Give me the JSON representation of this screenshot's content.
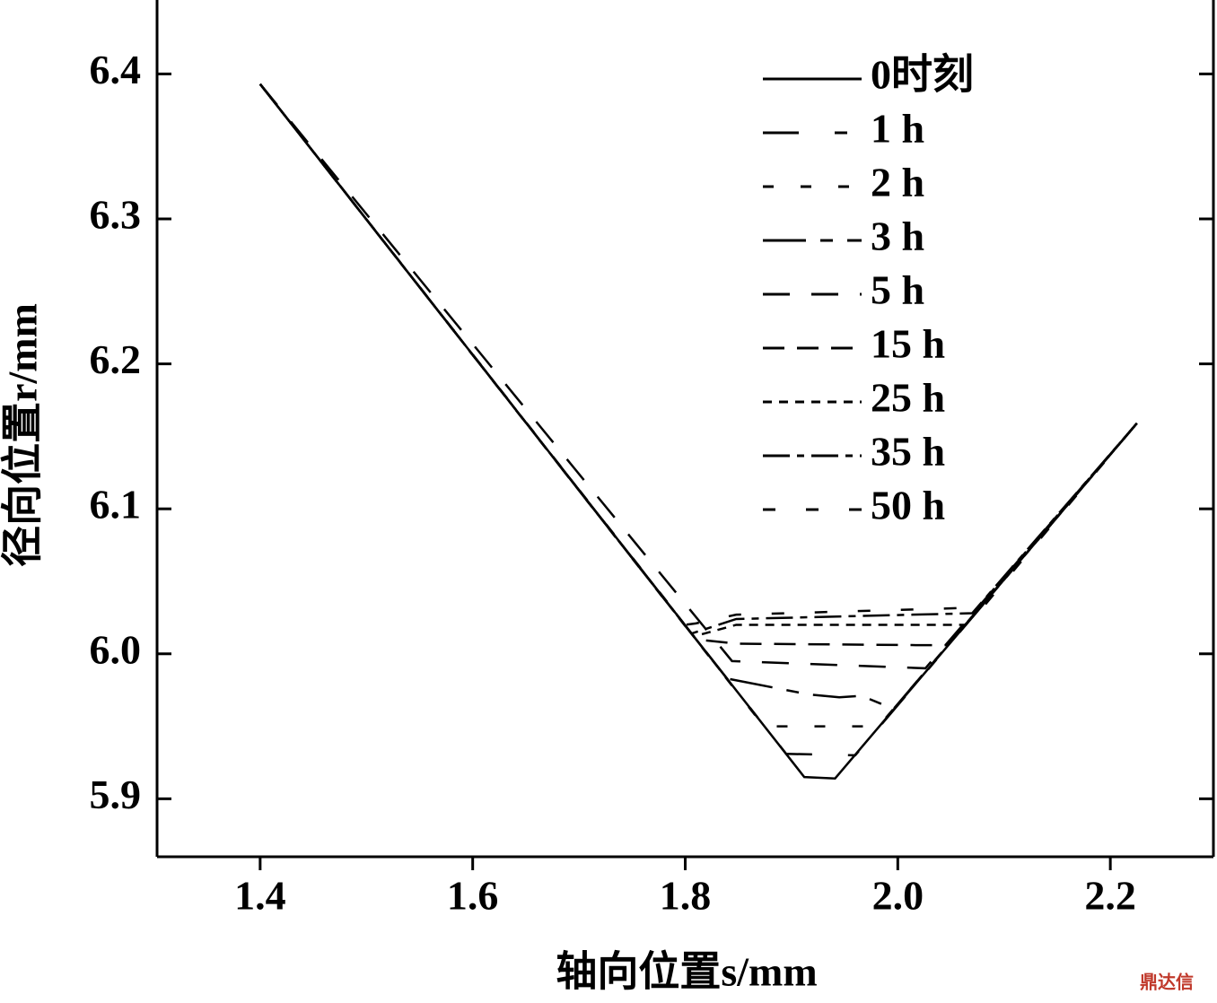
{
  "chart_data": {
    "type": "line",
    "x_label": "轴向位置s/mm",
    "y_label": "径向位置r/mm",
    "watermark": "鼎达信",
    "xlim": [
      1.303,
      2.297
    ],
    "ylim": [
      5.86,
      6.451
    ],
    "xticks": [
      1.4,
      1.6,
      1.8,
      {
        "value": 2,
        "label": "2.0"
      },
      2.2
    ],
    "yticks": [
      5.9,
      {
        "value": 6,
        "label": "6.0"
      },
      6.1,
      6.2,
      6.3,
      6.4
    ],
    "legend": "top-right",
    "series": [
      {
        "name": "0时刻",
        "color": "#000000",
        "dash": "none",
        "x": [
          1.4,
          1.912,
          1.941,
          2.225
        ],
        "values": [
          6.393,
          5.915,
          5.914,
          6.159
        ]
      },
      {
        "name": "1 h",
        "color": "#000000",
        "dash": "40 40 14 40",
        "x": [
          1.4,
          1.895,
          1.96,
          2.225
        ],
        "values": [
          6.393,
          5.931,
          5.93,
          6.159
        ]
      },
      {
        "name": "2 h",
        "color": "#000000",
        "dash": "12 30",
        "x": [
          1.4,
          1.874,
          1.982,
          2.225
        ],
        "values": [
          6.393,
          5.95,
          5.95,
          6.159
        ]
      },
      {
        "name": "3 h",
        "color": "#000000",
        "dash": "48 16 14 16",
        "x": [
          1.4,
          1.839,
          1.916,
          1.945,
          1.966,
          1.996,
          2.225
        ],
        "values": [
          6.393,
          5.983,
          5.972,
          5.97,
          5.971,
          5.962,
          6.159
        ]
      },
      {
        "name": "5 h",
        "color": "#000000",
        "dash": "30 24",
        "x": [
          1.4,
          1.844,
          2.026,
          2.225
        ],
        "values": [
          6.393,
          5.995,
          5.99,
          6.159
        ]
      },
      {
        "name": "15 h",
        "color": "#000000",
        "dash": "24 14",
        "x": [
          1.4,
          1.81,
          1.848,
          2.017,
          2.047,
          2.225
        ],
        "values": [
          6.393,
          6.01,
          6.007,
          6.006,
          6.006,
          6.159
        ]
      },
      {
        "name": "25 h",
        "color": "#000000",
        "dash": "10 8",
        "x": [
          1.4,
          1.808,
          1.848,
          2.043,
          2.064,
          2.225
        ],
        "values": [
          6.393,
          6.012,
          6.02,
          6.02,
          6.02,
          6.159
        ]
      },
      {
        "name": "35 h",
        "color": "#000000",
        "dash": "30 8 8 8",
        "x": [
          1.4,
          1.806,
          1.848,
          2.07,
          2.225
        ],
        "values": [
          6.393,
          6.014,
          6.024,
          6.028,
          6.159
        ]
      },
      {
        "name": "50 h",
        "color": "#000000",
        "dash": "14 34",
        "x": [
          1.4,
          1.8,
          1.81,
          1.848,
          2.08,
          2.225
        ],
        "values": [
          6.393,
          6.02,
          6.021,
          6.027,
          6.032,
          6.159
        ]
      }
    ]
  }
}
